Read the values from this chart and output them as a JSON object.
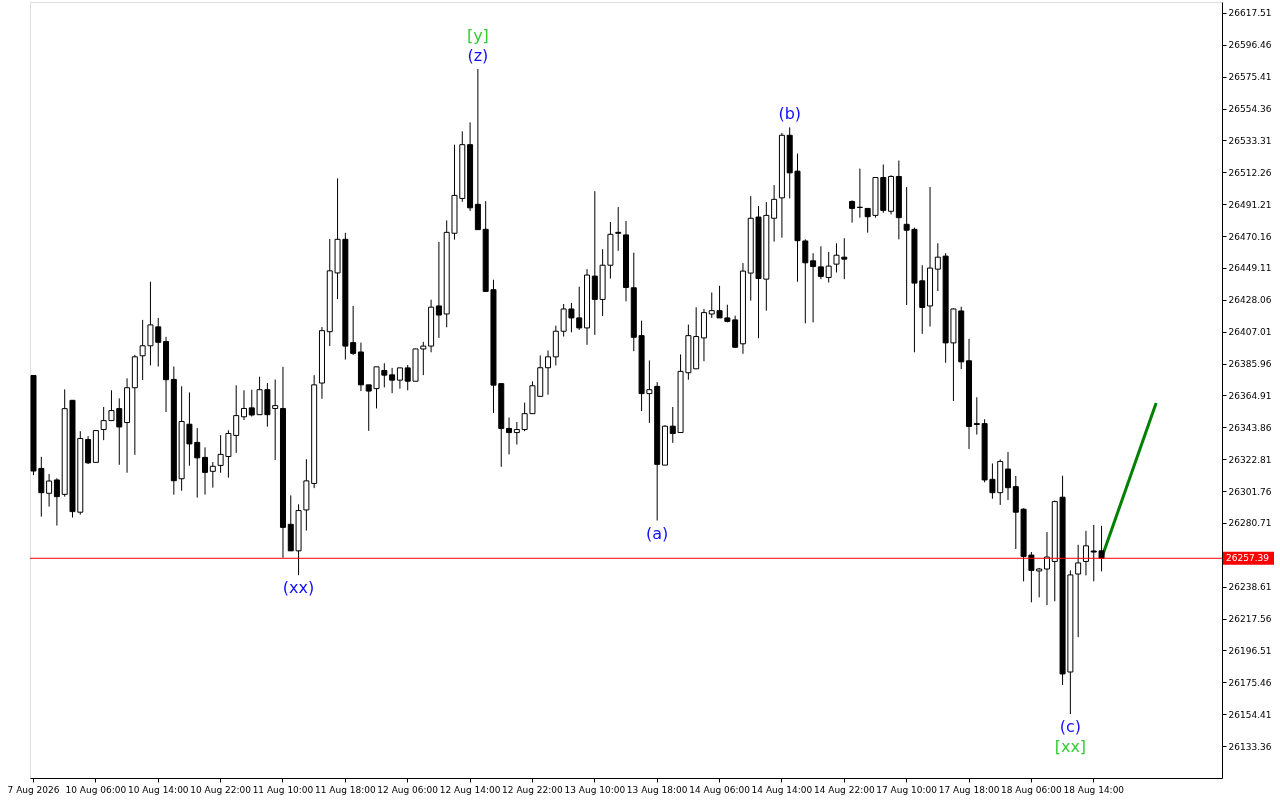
{
  "chart_data": {
    "type": "candlestick",
    "categories": [
      "7 Aug 2026",
      null,
      null,
      null,
      null,
      null,
      null,
      null,
      "10 Aug 06:00",
      null,
      null,
      null,
      null,
      null,
      null,
      null,
      "10 Aug 14:00",
      null,
      null,
      null,
      null,
      null,
      null,
      null,
      "10 Aug 22:00",
      null,
      null,
      null,
      null,
      null,
      null,
      null,
      "11 Aug 10:00",
      null,
      null,
      null,
      null,
      null,
      null,
      null,
      "11 Aug 18:00",
      null,
      null,
      null,
      null,
      null,
      null,
      null,
      "12 Aug 06:00",
      null,
      null,
      null,
      null,
      null,
      null,
      null,
      "12 Aug 14:00",
      null,
      null,
      null,
      null,
      null,
      null,
      null,
      "12 Aug 22:00",
      null,
      null,
      null,
      null,
      null,
      null,
      null,
      "13 Aug 10:00",
      null,
      null,
      null,
      null,
      null,
      null,
      null,
      "13 Aug 18:00",
      null,
      null,
      null,
      null,
      null,
      null,
      null,
      "14 Aug 06:00",
      null,
      null,
      null,
      null,
      null,
      null,
      null,
      "14 Aug 14:00",
      null,
      null,
      null,
      null,
      null,
      null,
      null,
      "14 Aug 22:00",
      null,
      null,
      null,
      null,
      null,
      null,
      null,
      "17 Aug 10:00",
      null,
      null,
      null,
      null,
      null,
      null,
      null,
      "17 Aug 18:00",
      null,
      null,
      null,
      null,
      null,
      null,
      null,
      "18 Aug 06:00",
      null,
      null,
      null,
      null,
      null,
      null,
      null,
      "18 Aug 14:00",
      null,
      null,
      null,
      null,
      null,
      null,
      null,
      null,
      null,
      null,
      null,
      null,
      null,
      null,
      null,
      null
    ],
    "ohlc": [
      [
        26378.1,
        26378.1,
        26312.3,
        26315.0
      ],
      [
        26316.7,
        26324.4,
        26284.9,
        26300.7
      ],
      [
        26300.3,
        26313.0,
        26291.5,
        26308.4
      ],
      [
        26309.1,
        26310.2,
        26279.0,
        26298.1
      ],
      [
        26299.6,
        26368.9,
        26298.1,
        26356.2
      ],
      [
        26361.7,
        26361.7,
        26284.3,
        26288.2
      ],
      [
        26287.8,
        26341.3,
        26286.2,
        26336.5
      ],
      [
        26335.8,
        26338.0,
        26319.6,
        26320.4
      ],
      [
        26320.7,
        26341.7,
        26320.7,
        26341.7
      ],
      [
        26342.4,
        26357.3,
        26335.4,
        26348.3
      ],
      [
        26348.3,
        26368.3,
        26348.3,
        26354.9
      ],
      [
        26356.2,
        26363.0,
        26319.1,
        26344.1
      ],
      [
        26347.0,
        26376.2,
        26313.9,
        26370.0
      ],
      [
        26370.0,
        26391.7,
        26325.7,
        26390.4
      ],
      [
        26391.1,
        26414.8,
        26375.0,
        26397.7
      ],
      [
        26397.7,
        26440.0,
        26384.7,
        26411.5
      ],
      [
        26410.2,
        26416.1,
        26384.0,
        26400.0
      ],
      [
        26400.5,
        26403.6,
        26354.0,
        26375.3
      ],
      [
        26375.5,
        26384.0,
        26299.4,
        26308.6
      ],
      [
        26309.9,
        26370.9,
        26302.0,
        26347.7
      ],
      [
        26345.9,
        26366.9,
        26318.5,
        26332.9
      ],
      [
        26333.9,
        26343.3,
        26297.4,
        26323.7
      ],
      [
        26324.0,
        26330.6,
        26299.4,
        26314.1
      ],
      [
        26314.8,
        26320.9,
        26304.0,
        26318.1
      ],
      [
        26318.7,
        26338.7,
        26313.9,
        26326.0
      ],
      [
        26324.6,
        26341.9,
        26310.6,
        26339.8
      ],
      [
        26338.5,
        26371.6,
        26327.0,
        26351.6
      ],
      [
        26350.8,
        26368.3,
        26348.7,
        26356.3
      ],
      [
        26356.7,
        26368.7,
        26351.0,
        26352.0
      ],
      [
        26352.2,
        26377.3,
        26352.2,
        26368.7
      ],
      [
        26368.7,
        26373.1,
        26344.3,
        26352.2
      ],
      [
        26356.3,
        26375.4,
        26322.3,
        26358.2
      ],
      [
        26356.3,
        26383.8,
        26257.7,
        26277.8
      ],
      [
        26279.8,
        26298.9,
        26262.3,
        26262.3
      ],
      [
        26262.3,
        26293.0,
        26246.2,
        26288.9
      ],
      [
        26289.3,
        26322.8,
        26275.7,
        26308.5
      ],
      [
        26306.8,
        26378.3,
        26303.7,
        26371.9
      ],
      [
        26373.1,
        26410.1,
        26362.7,
        26407.7
      ],
      [
        26407.0,
        26468.2,
        26397.5,
        26447.2
      ],
      [
        26445.8,
        26508.2,
        26428.5,
        26468.0
      ],
      [
        26468.0,
        26472.3,
        26388.6,
        26397.5
      ],
      [
        26399.8,
        26424.0,
        26391.7,
        26392.7
      ],
      [
        26393.6,
        26399.8,
        26367.8,
        26371.9
      ],
      [
        26371.9,
        26371.9,
        26341.5,
        26367.8
      ],
      [
        26369.4,
        26383.8,
        26356.3,
        26383.8
      ],
      [
        26381.4,
        26386.2,
        26370.2,
        26378.3
      ],
      [
        26378.5,
        26383.1,
        26366.4,
        26375.0
      ],
      [
        26375.0,
        26383.1,
        26369.4,
        26383.1
      ],
      [
        26383.1,
        26385.0,
        26368.3,
        26374.3
      ],
      [
        26374.3,
        26395.8,
        26374.3,
        26395.6
      ],
      [
        26395.6,
        26400.3,
        26378.3,
        26397.5
      ],
      [
        26397.5,
        26428.1,
        26393.4,
        26423.2
      ],
      [
        26424.0,
        26466.3,
        26402.9,
        26418.0
      ],
      [
        26418.7,
        26480.5,
        26409.9,
        26472.6
      ],
      [
        26472.0,
        26530.5,
        26467.8,
        26497.0
      ],
      [
        26495.0,
        26539.3,
        26492.8,
        26530.5
      ],
      [
        26530.5,
        26545.2,
        26486.7,
        26488.8
      ],
      [
        26491.1,
        26580.5,
        26474.4,
        26474.4
      ],
      [
        26474.6,
        26493.2,
        26433.6,
        26433.6
      ],
      [
        26434.7,
        26441.3,
        26353.3,
        26371.7
      ],
      [
        26372.7,
        26372.7,
        26317.8,
        26343.1
      ],
      [
        26343.1,
        26350.3,
        26326.0,
        26340.4
      ],
      [
        26340.4,
        26347.4,
        26332.5,
        26342.4
      ],
      [
        26342.4,
        26360.2,
        26341.3,
        26352.9
      ],
      [
        26352.9,
        26374.2,
        26352.9,
        26371.3
      ],
      [
        26364.3,
        26391.3,
        26364.3,
        26383.2
      ],
      [
        26383.2,
        26394.6,
        26365.4,
        26390.4
      ],
      [
        26390.4,
        26411.0,
        26384.7,
        26407.3
      ],
      [
        26407.3,
        26425.3,
        26403.8,
        26422.0
      ],
      [
        26422.0,
        26426.0,
        26406.6,
        26416.1
      ],
      [
        26416.1,
        26436.7,
        26408.2,
        26409.5
      ],
      [
        26409.5,
        26448.3,
        26398.3,
        26444.4
      ],
      [
        26443.7,
        26499.8,
        26404.9,
        26428.3
      ],
      [
        26428.3,
        26461.5,
        26417.4,
        26450.9
      ],
      [
        26450.9,
        26479.4,
        26442.1,
        26471.3
      ],
      [
        26472.6,
        26489.3,
        26460.4,
        26472.0
      ],
      [
        26470.9,
        26480.1,
        26427.0,
        26436.2
      ],
      [
        26436.0,
        26459.2,
        26394.1,
        26403.3
      ],
      [
        26404.4,
        26414.3,
        26354.6,
        26366.1
      ],
      [
        26366.1,
        26388.0,
        26346.8,
        26368.7
      ],
      [
        26370.9,
        26373.7,
        26282.3,
        26319.4
      ],
      [
        26318.9,
        26345.2,
        26318.9,
        26344.6
      ],
      [
        26344.6,
        26357.3,
        26333.6,
        26339.8
      ],
      [
        26340.4,
        26392.0,
        26340.4,
        26380.8
      ],
      [
        26379.9,
        26411.7,
        26375.3,
        26404.4
      ],
      [
        26382.5,
        26423.1,
        26382.5,
        26403.8
      ],
      [
        26402.9,
        26422.0,
        26387.5,
        26419.6
      ],
      [
        26418.7,
        26432.9,
        26416.1,
        26420.9
      ],
      [
        26420.9,
        26437.3,
        26416.1,
        26416.1
      ],
      [
        26416.1,
        26424.8,
        26413.2,
        26413.8
      ],
      [
        26414.8,
        26417.6,
        26396.7,
        26396.7
      ],
      [
        26399.0,
        26452.3,
        26392.4,
        26447.0
      ],
      [
        26445.7,
        26496.5,
        26427.5,
        26481.9
      ],
      [
        26482.7,
        26490.0,
        26402.7,
        26442.1
      ],
      [
        26441.7,
        26492.6,
        26420.9,
        26483.8
      ],
      [
        26481.9,
        26503.8,
        26466.5,
        26494.4
      ],
      [
        26495.4,
        26538.2,
        26469.1,
        26536.7
      ],
      [
        26536.7,
        26541.9,
        26495.0,
        26511.9
      ],
      [
        26513.0,
        26524.6,
        26440.0,
        26467.1
      ],
      [
        26466.9,
        26468.0,
        26412.5,
        26452.5
      ],
      [
        26453.8,
        26458.8,
        26413.2,
        26450.0
      ],
      [
        26449.8,
        26463.4,
        26441.7,
        26443.5
      ],
      [
        26442.8,
        26459.7,
        26439.5,
        26450.3
      ],
      [
        26451.6,
        26465.4,
        26446.1,
        26457.5
      ],
      [
        26456.2,
        26468.7,
        26441.7,
        26454.9
      ],
      [
        26493.0,
        26493.7,
        26479.0,
        26488.4
      ],
      [
        26489.2,
        26514.7,
        26482.3,
        26489.0
      ],
      [
        26488.4,
        26488.4,
        26472.4,
        26482.9
      ],
      [
        26483.8,
        26509.0,
        26482.3,
        26508.8
      ],
      [
        26508.8,
        26517.4,
        26485.5,
        26487.1
      ],
      [
        26486.5,
        26510.3,
        26484.5,
        26509.5
      ],
      [
        26509.5,
        26520.0,
        26468.0,
        26482.3
      ],
      [
        26477.9,
        26502.5,
        26424.6,
        26474.0
      ],
      [
        26474.6,
        26475.7,
        26393.4,
        26439.1
      ],
      [
        26440.6,
        26450.9,
        26405.6,
        26423.0
      ],
      [
        26424.0,
        26502.5,
        26410.5,
        26449.0
      ],
      [
        26448.3,
        26465.4,
        26433.8,
        26456.2
      ],
      [
        26456.9,
        26458.8,
        26386.5,
        26399.6
      ],
      [
        26399.6,
        26422.4,
        26361.2,
        26422.0
      ],
      [
        26420.7,
        26423.5,
        26382.3,
        26387.1
      ],
      [
        26387.8,
        26402.3,
        26329.6,
        26344.4
      ],
      [
        26346.3,
        26363.7,
        26339.1,
        26345.7
      ],
      [
        26346.3,
        26349.2,
        26307.5,
        26309.1
      ],
      [
        26309.5,
        26320.0,
        26296.7,
        26300.7
      ],
      [
        26300.7,
        26322.7,
        26292.6,
        26321.3
      ],
      [
        26316.3,
        26327.5,
        26295.9,
        26304.0
      ],
      [
        26304.7,
        26311.7,
        26263.5,
        26287.8
      ],
      [
        26289.8,
        26290.4,
        26242.2,
        26258.6
      ],
      [
        26259.5,
        26261.5,
        26228.3,
        26249.4
      ],
      [
        26249.0,
        26251.0,
        26231.6,
        26250.3
      ],
      [
        26250.3,
        26274.7,
        26226.4,
        26258.2
      ],
      [
        26255.3,
        26295.5,
        26229.0,
        26294.8
      ],
      [
        26297.7,
        26311.9,
        26173.7,
        26181.0
      ],
      [
        26182.3,
        26249.4,
        26154.5,
        26246.4
      ],
      [
        26247.0,
        26266.3,
        26205.3,
        26254.3
      ],
      [
        26255.3,
        26275.5,
        26246.1,
        26265.6
      ],
      [
        26262.2,
        26279.4,
        26242.2,
        26261.5
      ],
      [
        26262.3,
        26278.8,
        26248.7,
        26257.4
      ],
      null,
      null,
      null,
      null,
      null,
      null,
      null,
      null,
      null,
      null,
      null,
      null,
      null,
      null,
      null
    ],
    "series": [
      {
        "type": "line",
        "color": "#008000",
        "values": [
          null,
          null,
          null,
          null,
          null,
          null,
          null,
          null,
          null,
          null,
          null,
          null,
          null,
          null,
          null,
          null,
          null,
          null,
          null,
          null,
          null,
          null,
          null,
          null,
          null,
          null,
          null,
          null,
          null,
          null,
          null,
          null,
          null,
          null,
          null,
          null,
          null,
          null,
          null,
          null,
          null,
          null,
          null,
          null,
          null,
          null,
          null,
          null,
          null,
          null,
          null,
          null,
          null,
          null,
          null,
          null,
          null,
          null,
          null,
          null,
          null,
          null,
          null,
          null,
          null,
          null,
          null,
          null,
          null,
          null,
          null,
          null,
          null,
          null,
          null,
          null,
          null,
          null,
          null,
          null,
          null,
          null,
          null,
          null,
          null,
          null,
          null,
          null,
          null,
          null,
          null,
          null,
          null,
          null,
          null,
          null,
          null,
          null,
          null,
          null,
          null,
          null,
          null,
          null,
          null,
          null,
          null,
          null,
          null,
          null,
          null,
          null,
          null,
          null,
          null,
          null,
          null,
          null,
          null,
          null,
          null,
          null,
          null,
          null,
          null,
          null,
          null,
          null,
          null,
          null,
          null,
          null,
          null,
          null,
          null,
          null,
          null,
          26257.4,
          null,
          null,
          null,
          null,
          null,
          null,
          26359.9,
          null,
          null,
          null,
          null,
          null,
          null,
          null,
          null
        ]
      }
    ],
    "ylim": [
      26112.3,
      26624.7
    ],
    "yticks": [
      26133.36,
      26154.41,
      26175.46,
      26196.51,
      26217.56,
      26238.61,
      26280.71,
      26301.76,
      26322.81,
      26343.86,
      26364.91,
      26385.96,
      26407.01,
      26428.06,
      26449.11,
      26470.16,
      26491.21,
      26512.26,
      26533.31,
      26554.36,
      26575.41,
      26596.46,
      26617.51
    ],
    "ref_lines": [
      {
        "axis": "y",
        "value": 26257.39,
        "label": "26257.39",
        "color": "#ff0000"
      }
    ],
    "annotations": [
      {
        "text": "(xx)",
        "y": 26246.2
      },
      {
        "text": "(z)",
        "y": 26580.5
      },
      {
        "text": "[y]",
        "y": 26580.5
      },
      {
        "text": "(a)",
        "y": 26282.3
      },
      {
        "text": "(b)",
        "y": 26541.9
      },
      {
        "text": "(c)",
        "y": 26154.5
      },
      {
        "text": "[xx]",
        "y": 26154.5
      }
    ]
  }
}
